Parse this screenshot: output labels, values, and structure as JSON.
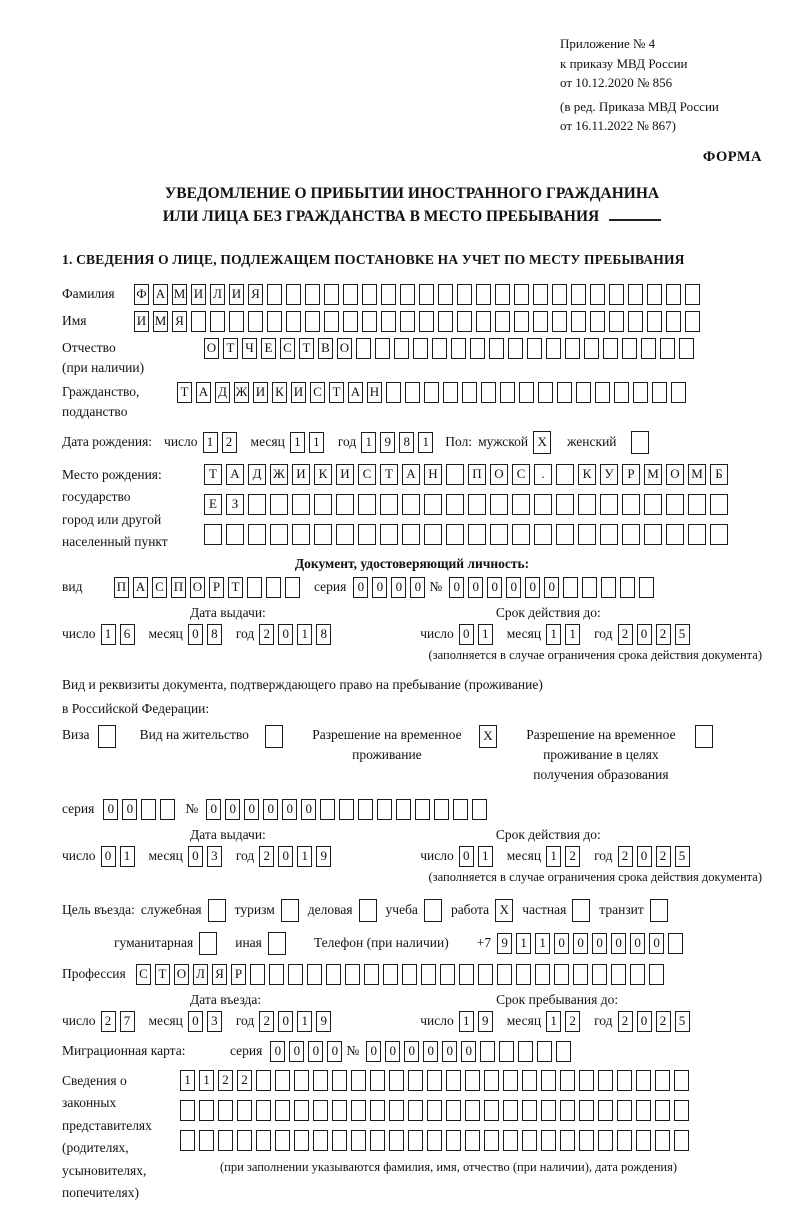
{
  "header": {
    "appendix": [
      "Приложение № 4",
      "к приказу МВД России",
      "от 10.12.2020 № 856"
    ],
    "edition": [
      "(в ред. Приказа МВД России",
      "от 16.11.2022 № 867)"
    ],
    "form_label": "ФОРМА"
  },
  "title": {
    "line1": "УВЕДОМЛЕНИЕ О ПРИБЫТИИ ИНОСТРАННОГО ГРАЖДАНИНА",
    "line2": "ИЛИ ЛИЦА БЕЗ ГРАЖДАНСТВА В МЕСТО ПРЕБЫВАНИЯ"
  },
  "section1_heading": "1. СВЕДЕНИЯ О ЛИЦЕ, ПОДЛЕЖАЩЕМ ПОСТАНОВКЕ НА УЧЕТ ПО МЕСТУ ПРЕБЫВАНИЯ",
  "labels": {
    "day": "число",
    "month": "месяц",
    "year": "год",
    "series": "серия",
    "number": "№",
    "doc_kind": "вид",
    "sex": "Пол:",
    "male": "мужской",
    "female": "женский"
  },
  "surname": {
    "label": "Фамилия",
    "value": "ФАМИЛИЯ",
    "total": 30
  },
  "given_name": {
    "label": "Имя",
    "value": "ИМЯ",
    "total": 30
  },
  "patronymic": {
    "label": "Отчество",
    "note": "(при наличии)",
    "value": "ОТЧЕСТВО",
    "total": 26
  },
  "citizenship": {
    "label1": "Гражданство,",
    "label2": "подданство",
    "value": "ТАДЖИКИСТАН",
    "total": 27
  },
  "birth_date": {
    "label": "Дата рождения:",
    "day": "12",
    "month": "11",
    "year": "1981",
    "male": "X",
    "female": ""
  },
  "birth_place": {
    "label_lines": [
      "Место рождения:",
      "государство",
      "город или другой",
      "населенный пункт"
    ],
    "row1": {
      "value": "ТАДЖИКИСТАН ПОС. КУРМОМБ",
      "total": 24
    },
    "row2": {
      "value": "ЕЗ",
      "total": 24
    },
    "row3": {
      "value": "",
      "total": 24
    }
  },
  "identity_doc": {
    "heading": "Документ, удостоверяющий личность:",
    "kind": {
      "value": "ПАСПОРТ",
      "total": 10
    },
    "series": {
      "value": "0000",
      "total": 4
    },
    "number": {
      "value": "000000",
      "total": 11
    },
    "issue_heading": "Дата выдачи:",
    "issue_day": "16",
    "issue_month": "08",
    "issue_year": "2018",
    "expiry_heading": "Срок действия до:",
    "expiry_day": "01",
    "expiry_month": "11",
    "expiry_year": "2025",
    "expiry_note": "(заполняется в случае ограничения срока действия документа)"
  },
  "residence_doc": {
    "intro1": "Вид и реквизиты документа, подтверждающего право на пребывание (проживание)",
    "intro2": "в Российской Федерации:",
    "visa_label": "Виза",
    "visa": "",
    "permit_label": "Вид на жительство",
    "permit": "",
    "trp_label": "Разрешение на временное проживание",
    "trp": "X",
    "trp_edu_label": "Разрешение на временное проживание в целях получения образования",
    "trp_edu": "",
    "series": {
      "value": "00",
      "total": 4
    },
    "number": {
      "value": "000000",
      "total": 15
    },
    "issue_heading": "Дата выдачи:",
    "issue_day": "01",
    "issue_month": "03",
    "issue_year": "2019",
    "expiry_heading": "Срок действия до:",
    "expiry_day": "01",
    "expiry_month": "12",
    "expiry_year": "2025",
    "expiry_note": "(заполняется в случае ограничения срока действия документа)"
  },
  "purpose": {
    "label": "Цель въезда:",
    "opt_business": "служебная",
    "business": "",
    "opt_tourism": "туризм",
    "tourism": "",
    "opt_commercial": "деловая",
    "commercial": "",
    "opt_study": "учеба",
    "study": "",
    "opt_work": "работа",
    "work": "X",
    "opt_private": "частная",
    "private": "",
    "opt_transit": "транзит",
    "transit": "",
    "opt_humanitarian": "гуманитарная",
    "humanitarian": "",
    "opt_other": "иная",
    "other": ""
  },
  "phone": {
    "label": "Телефон (при наличии)",
    "prefix": "+7",
    "digits": {
      "value": "911000000",
      "total": 10
    }
  },
  "profession": {
    "label": "Профессия",
    "value": "СТОЛЯР",
    "total": 28
  },
  "entry": {
    "date_heading": "Дата въезда:",
    "day": "27",
    "month": "03",
    "year": "2019",
    "stay_heading": "Срок пребывания до:",
    "stay_day": "19",
    "stay_month": "12",
    "stay_year": "2025"
  },
  "migration_card": {
    "label": "Миграционная карта:",
    "series": {
      "value": "0000",
      "total": 4
    },
    "number": {
      "value": "000000",
      "total": 11
    }
  },
  "representatives": {
    "label_lines": [
      "Сведения о",
      "законных",
      "представителях",
      "(родителях,",
      "усыновителях,",
      "попечителях)"
    ],
    "row1": {
      "value": "1122",
      "total": 27
    },
    "row2": {
      "value": "",
      "total": 27
    },
    "row3": {
      "value": "",
      "total": 27
    },
    "note": "(при заполнении указываются фамилия, имя, отчество (при наличии), дата рождения)"
  }
}
